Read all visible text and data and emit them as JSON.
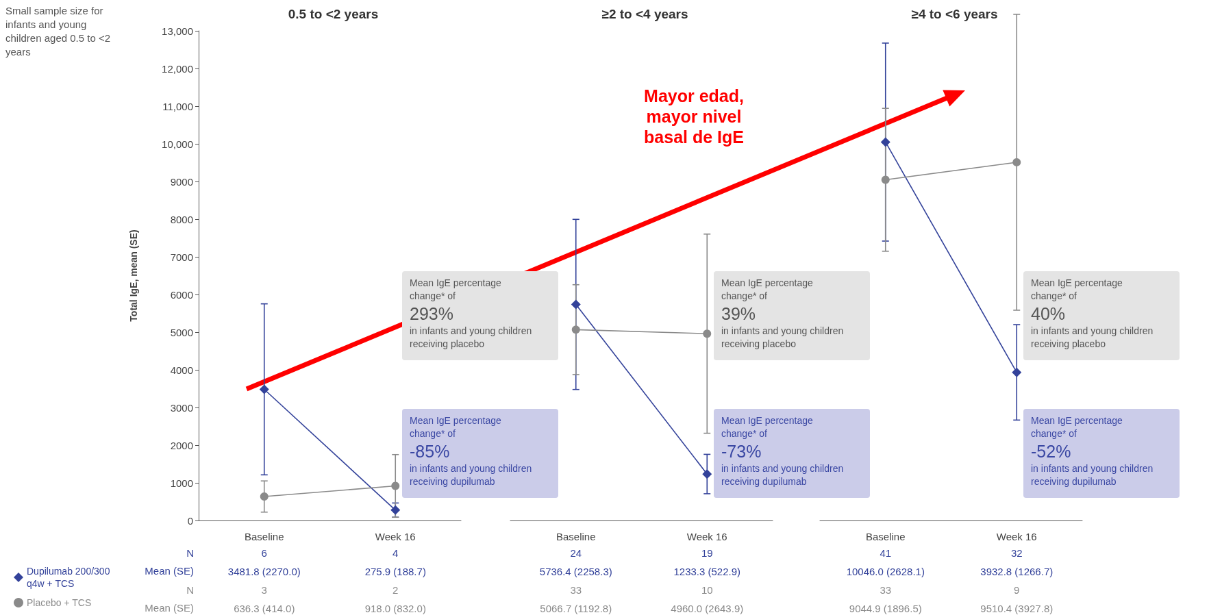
{
  "chart_data": [
    {
      "type": "line",
      "title": "0.5 to <2 years",
      "ylabel": "Total IgE, mean (SE)",
      "categories": [
        "Baseline",
        "Week 16"
      ],
      "ylim": [
        0,
        13000
      ],
      "yticks": [
        0,
        1000,
        2000,
        3000,
        4000,
        5000,
        6000,
        7000,
        8000,
        9000,
        {
          "value": 10000,
          "label": "10,000"
        },
        {
          "value": 11000,
          "label": "11,000"
        },
        {
          "value": 12000,
          "label": "12,000"
        },
        {
          "value": 13000,
          "label": "13,000"
        }
      ],
      "grid": false,
      "legend": "bottom left",
      "series": [
        {
          "name": "Dupilumab 200/300 q4w + TCS",
          "color": "#33429a",
          "marker": "diamond",
          "values": [
            3481.8,
            275.9
          ],
          "errors": [
            2270.0,
            188.7
          ],
          "value_labels": [
            "3481.8 (2270.0)",
            "275.9 (188.7)"
          ]
        },
        {
          "name": "Placebo + TCS",
          "color": "#8a8a8a",
          "marker": "circle",
          "values": [
            636.3,
            918.0
          ],
          "errors": [
            414.0,
            832.0
          ],
          "value_labels": [
            "636.3 (414.0)",
            "918.0 (832.0)"
          ]
        }
      ],
      "annotations": [
        "Mean IgE percentage change* of",
        "293%",
        "in infants and young children receiving placebo",
        "Mean IgE percentage change* of",
        "-85%",
        "in infants and young children receiving dupilumab",
        "6",
        "4",
        "3",
        "2",
        "Small sample size for infants and young children aged 0.5 to <2 years",
        "N",
        "Mean (SE)",
        "N",
        "Mean (SE)"
      ]
    },
    {
      "type": "line",
      "title": "≥2 to <4 years",
      "categories": [
        "Baseline",
        "Week 16"
      ],
      "ylim": [
        0,
        13000
      ],
      "yticks": [
        0,
        1000,
        2000,
        3000,
        4000,
        5000,
        6000,
        7000,
        8000,
        9000,
        10000,
        11000,
        12000,
        13000
      ],
      "tick_labels": "x",
      "grid": false,
      "series": [
        {
          "color": "#33429a",
          "marker": "diamond",
          "values": [
            5736.4,
            1233.3
          ],
          "errors": [
            2258.3,
            522.9
          ],
          "value_labels": [
            "5736.4 (2258.3)",
            "1233.3 (522.9)"
          ]
        },
        {
          "color": "#8a8a8a",
          "marker": "circle",
          "values": [
            5066.7,
            4960.0
          ],
          "errors": [
            1192.8,
            2643.9
          ],
          "value_labels": [
            "5066.7 (1192.8)",
            "4960.0 (2643.9)"
          ]
        }
      ],
      "annotations": [
        "Mean IgE percentage change* of",
        "39%",
        "in infants and young children receiving placebo",
        "Mean IgE percentage change* of",
        "-73%",
        "in infants and young children receiving dupilumab",
        "24",
        "19",
        "33",
        "10",
        "Mayor edad, mayor nivel basal de IgE"
      ]
    },
    {
      "type": "line",
      "title": "≥4 to <6 years",
      "categories": [
        "Baseline",
        "Week 16"
      ],
      "ylim": [
        0,
        13000
      ],
      "yticks": [
        0,
        1000,
        2000,
        3000,
        4000,
        5000,
        6000,
        7000,
        8000,
        9000,
        10000,
        11000,
        12000,
        13000
      ],
      "tick_labels": "x",
      "grid": false,
      "series": [
        {
          "color": "#33429a",
          "marker": "diamond",
          "values": [
            10046.0,
            3932.8
          ],
          "errors": [
            2628.1,
            1266.7
          ],
          "value_labels": [
            "10046.0 (2628.1)",
            "3932.8 (1266.7)"
          ]
        },
        {
          "color": "#8a8a8a",
          "marker": "circle",
          "values": [
            9044.9,
            9510.4
          ],
          "errors": [
            1896.5,
            3927.8
          ],
          "value_labels": [
            "9044.9 (1896.5)",
            "9510.4 (3927.8)"
          ]
        }
      ],
      "annotations": [
        "Mean IgE percentage change* of",
        "40%",
        "in infants and young children receiving placebo",
        "Mean IgE percentage change* of",
        "-52%",
        "in infants and young children receiving dupilumab",
        "41",
        "32",
        "33",
        "9"
      ]
    }
  ]
}
